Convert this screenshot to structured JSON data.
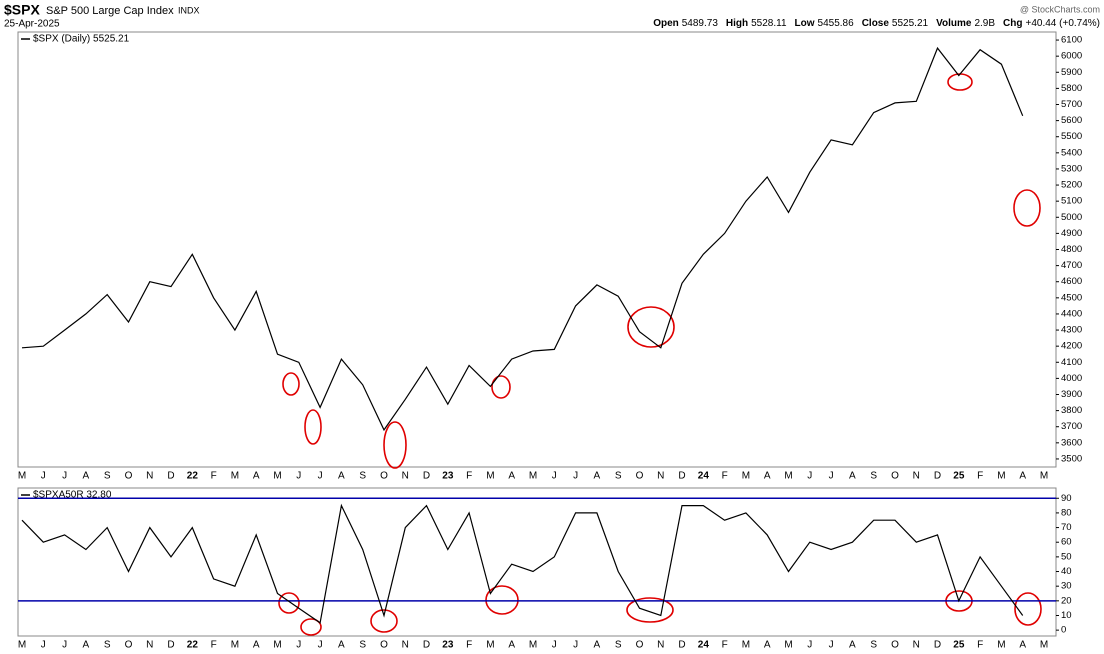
{
  "header": {
    "symbol": "$SPX",
    "name": "S&P 500 Large Cap Index",
    "exchange": "INDX",
    "date": "25-Apr-2025",
    "watermark": "@ StockCharts.com",
    "quote": [
      {
        "label": "Open",
        "value": "5489.73"
      },
      {
        "label": "High",
        "value": "5528.11"
      },
      {
        "label": "Low",
        "value": "5455.86"
      },
      {
        "label": "Close",
        "value": "5525.21"
      },
      {
        "label": "Volume",
        "value": "2.9B"
      },
      {
        "label": "Chg",
        "value": "+40.44 (+0.74%)"
      }
    ]
  },
  "chart_data": [
    {
      "type": "line",
      "categories": [
        "M",
        "J",
        "J",
        "A",
        "S",
        "O",
        "N",
        "D",
        "22",
        "F",
        "M",
        "A",
        "M",
        "J",
        "J",
        "A",
        "S",
        "O",
        "N",
        "D",
        "23",
        "F",
        "M",
        "A",
        "M",
        "J",
        "J",
        "A",
        "S",
        "O",
        "N",
        "D",
        "24",
        "F",
        "M",
        "A",
        "M",
        "J",
        "J",
        "A",
        "S",
        "O",
        "N",
        "D",
        "25",
        "F",
        "M",
        "A",
        "M"
      ],
      "series": [
        {
          "name": "$SPX (Daily) 5525.21",
          "color": "#000000",
          "values": [
            4190,
            4200,
            4300,
            4400,
            4520,
            4350,
            4600,
            4570,
            4770,
            4500,
            4300,
            4540,
            4150,
            4100,
            3820,
            4120,
            3960,
            3680,
            3870,
            4070,
            3840,
            4080,
            3950,
            4120,
            4170,
            4180,
            4450,
            4580,
            4510,
            4290,
            4190,
            4590,
            4770,
            4900,
            5100,
            5250,
            5030,
            5280,
            5480,
            5450,
            5650,
            5710,
            5720,
            6050,
            5880,
            6040,
            5950,
            5630,
            null
          ]
        }
      ],
      "ylim": [
        3450,
        6150
      ],
      "yticks": [
        3500,
        3600,
        3700,
        3800,
        3900,
        4000,
        4100,
        4200,
        4300,
        4400,
        4500,
        4600,
        4700,
        4800,
        4900,
        5000,
        5100,
        5200,
        5300,
        5400,
        5500,
        5600,
        5700,
        5800,
        5900,
        6000,
        6100
      ]
    },
    {
      "type": "line",
      "categories": [
        "M",
        "J",
        "J",
        "A",
        "S",
        "O",
        "N",
        "D",
        "22",
        "F",
        "M",
        "A",
        "M",
        "J",
        "J",
        "A",
        "S",
        "O",
        "N",
        "D",
        "23",
        "F",
        "M",
        "A",
        "M",
        "J",
        "J",
        "A",
        "S",
        "O",
        "N",
        "D",
        "24",
        "F",
        "M",
        "A",
        "M",
        "J",
        "J",
        "A",
        "S",
        "O",
        "N",
        "D",
        "25",
        "F",
        "M",
        "A",
        "M"
      ],
      "series": [
        {
          "name": "$SPXA50R 32.80",
          "color": "#000000",
          "values": [
            75,
            60,
            65,
            55,
            70,
            40,
            70,
            50,
            70,
            35,
            30,
            65,
            25,
            15,
            5,
            85,
            55,
            10,
            70,
            85,
            55,
            80,
            25,
            45,
            40,
            50,
            80,
            80,
            40,
            15,
            10,
            85,
            85,
            75,
            80,
            65,
            40,
            60,
            55,
            60,
            75,
            75,
            60,
            65,
            20,
            50,
            30,
            10,
            null
          ]
        }
      ],
      "reference_lines": [
        90,
        20
      ],
      "reference_color": "#0000aa",
      "ylim": [
        -4,
        97
      ],
      "yticks": [
        0,
        10,
        20,
        30,
        40,
        50,
        60,
        70,
        80,
        90
      ]
    }
  ]
}
